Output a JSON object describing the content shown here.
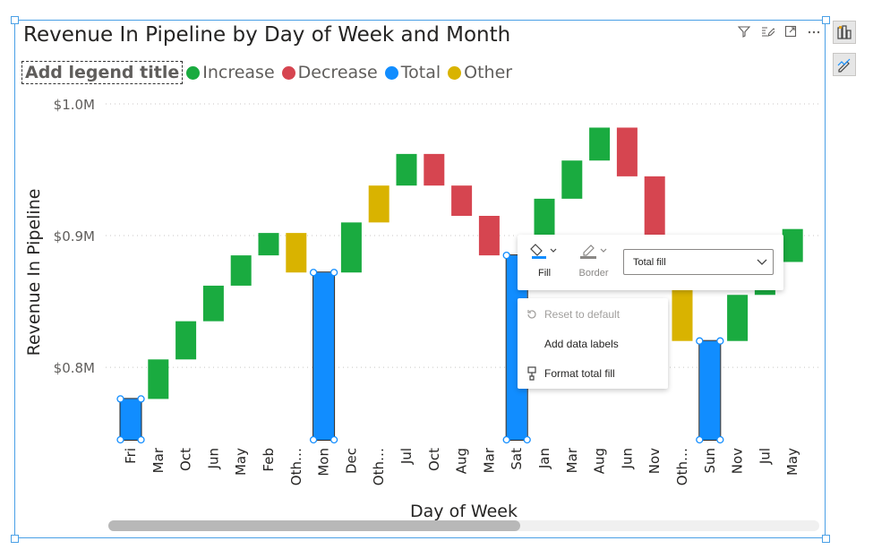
{
  "header": {
    "title": "Revenue In Pipeline by Day of Week and Month",
    "icons": [
      "filter-icon",
      "edit-icon",
      "focus-mode-icon",
      "more-options-icon"
    ]
  },
  "side_buttons": [
    "visual-format-icon",
    "analytics-icon"
  ],
  "legend": {
    "title": "Add legend title",
    "items": [
      {
        "label": "Increase",
        "color": "#1aab40"
      },
      {
        "label": "Decrease",
        "color": "#d64550"
      },
      {
        "label": "Total",
        "color": "#118dff"
      },
      {
        "label": "Other",
        "color": "#d9b300"
      }
    ]
  },
  "toolbar": {
    "fill_label": "Fill",
    "border_label": "Border",
    "select_value": "Total fill"
  },
  "context_menu": {
    "reset": "Reset to default",
    "add_labels": "Add data labels",
    "format_fill": "Format total fill"
  },
  "chart_data": {
    "type": "waterfall",
    "xlabel": "Day of Week",
    "ylabel": "Revenue In Pipeline",
    "ylim": [
      0.745,
      1.0
    ],
    "yticks": [
      {
        "value": 0.8,
        "label": "$0.8M"
      },
      {
        "value": 0.9,
        "label": "$0.9M"
      },
      {
        "value": 1.0,
        "label": "$1.0M"
      }
    ],
    "gridlines": true,
    "legend_position": "top-left",
    "colors": {
      "Increase": "#1aab40",
      "Decrease": "#d64550",
      "Total": "#118dff",
      "Other": "#d9b300"
    },
    "bars": [
      {
        "label": "Fri",
        "kind": "Total",
        "start": 0.745,
        "end": 0.776,
        "selected": true
      },
      {
        "label": "Mar",
        "kind": "Increase",
        "start": 0.776,
        "end": 0.806
      },
      {
        "label": "Oct",
        "kind": "Increase",
        "start": 0.806,
        "end": 0.835
      },
      {
        "label": "Jun",
        "kind": "Increase",
        "start": 0.835,
        "end": 0.862
      },
      {
        "label": "May",
        "kind": "Increase",
        "start": 0.862,
        "end": 0.885
      },
      {
        "label": "Feb",
        "kind": "Increase",
        "start": 0.885,
        "end": 0.902
      },
      {
        "label": "Oth…",
        "kind": "Other",
        "start": 0.902,
        "end": 0.872
      },
      {
        "label": "Mon",
        "kind": "Total",
        "start": 0.745,
        "end": 0.872,
        "selected": true
      },
      {
        "label": "Dec",
        "kind": "Increase",
        "start": 0.872,
        "end": 0.91
      },
      {
        "label": "Oth…",
        "kind": "Other",
        "start": 0.91,
        "end": 0.938
      },
      {
        "label": "Jul",
        "kind": "Increase",
        "start": 0.938,
        "end": 0.962
      },
      {
        "label": "Oct",
        "kind": "Decrease",
        "start": 0.962,
        "end": 0.938
      },
      {
        "label": "Aug",
        "kind": "Decrease",
        "start": 0.938,
        "end": 0.915
      },
      {
        "label": "Mar",
        "kind": "Decrease",
        "start": 0.915,
        "end": 0.885
      },
      {
        "label": "Sat",
        "kind": "Total",
        "start": 0.745,
        "end": 0.885,
        "selected": true
      },
      {
        "label": "Jan",
        "kind": "Increase",
        "start": 0.885,
        "end": 0.928
      },
      {
        "label": "Mar",
        "kind": "Increase",
        "start": 0.928,
        "end": 0.957
      },
      {
        "label": "Aug",
        "kind": "Increase",
        "start": 0.957,
        "end": 0.982
      },
      {
        "label": "Jun",
        "kind": "Decrease",
        "start": 0.982,
        "end": 0.945
      },
      {
        "label": "Nov",
        "kind": "Decrease",
        "start": 0.945,
        "end": 0.9
      },
      {
        "label": "Oth…",
        "kind": "Other",
        "start": 0.86,
        "end": 0.82
      },
      {
        "label": "Sun",
        "kind": "Total",
        "start": 0.745,
        "end": 0.82,
        "selected": true
      },
      {
        "label": "Nov",
        "kind": "Increase",
        "start": 0.82,
        "end": 0.855
      },
      {
        "label": "Jul",
        "kind": "Increase",
        "start": 0.855,
        "end": 0.88
      },
      {
        "label": "May",
        "kind": "Increase",
        "start": 0.88,
        "end": 0.905
      }
    ]
  }
}
